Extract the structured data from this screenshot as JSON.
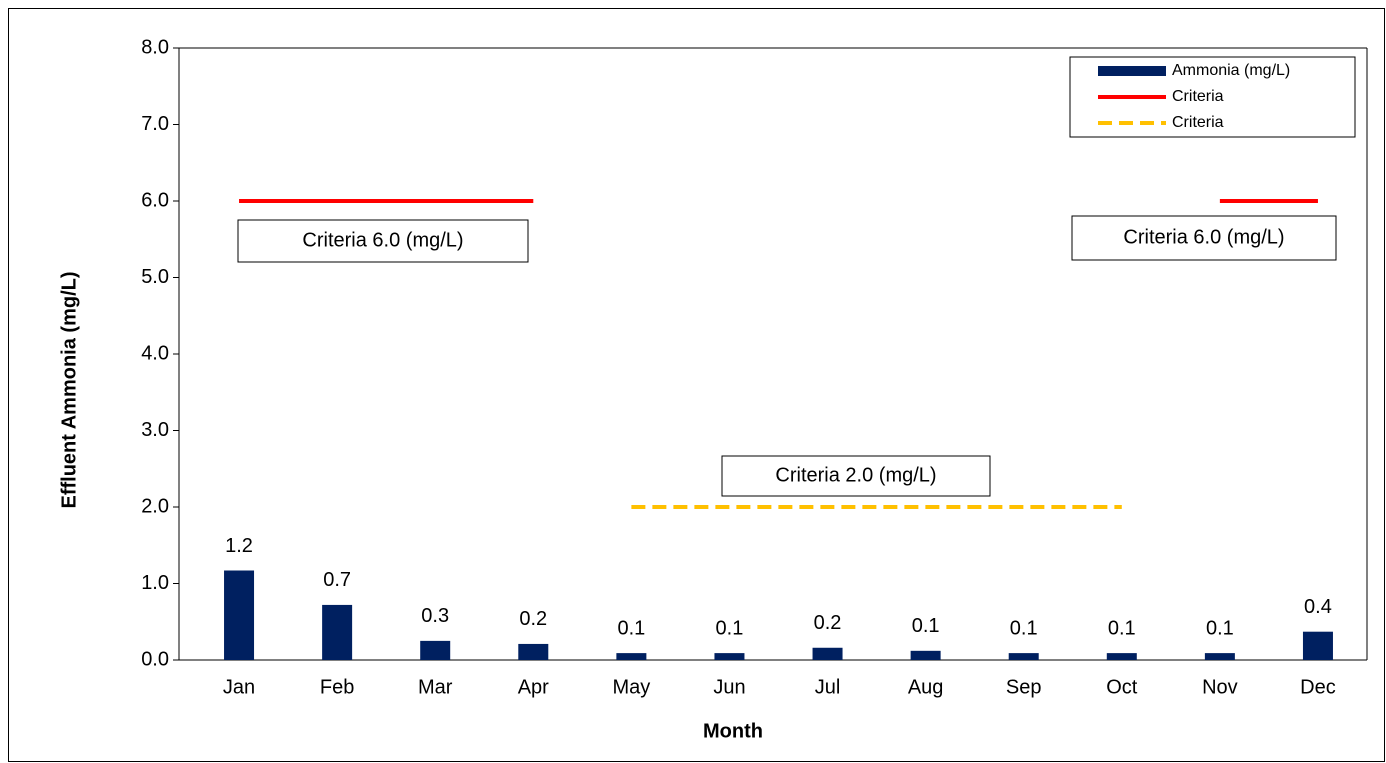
{
  "chart_data": {
    "type": "bar",
    "x_label": "Month",
    "y_label": "Effluent Ammonia (mg/L)",
    "categories": [
      "Jan",
      "Feb",
      "Mar",
      "Apr",
      "May",
      "Jun",
      "Jul",
      "Aug",
      "Sep",
      "Oct",
      "Nov",
      "Dec"
    ],
    "series": [
      {
        "name": "Ammonia (mg/L)",
        "type": "bar",
        "color": "#002060",
        "values": [
          1.17,
          0.72,
          0.25,
          0.21,
          0.09,
          0.09,
          0.16,
          0.12,
          0.09,
          0.09,
          0.09,
          0.37
        ],
        "value_labels": [
          "1.2",
          "0.7",
          "0.3",
          "0.2",
          "0.1",
          "0.1",
          "0.2",
          "0.1",
          "0.1",
          "0.1",
          "0.1",
          "0.4"
        ]
      },
      {
        "name": "Criteria",
        "type": "line",
        "color": "#ff0000",
        "dash": false,
        "values": [
          6,
          6,
          6,
          6,
          null,
          null,
          null,
          null,
          null,
          null,
          6,
          6
        ]
      },
      {
        "name": "Criteria",
        "type": "line",
        "color": "#ffc000",
        "dash": true,
        "values": [
          null,
          null,
          null,
          null,
          2,
          2,
          2,
          2,
          2,
          2,
          null,
          null
        ]
      }
    ],
    "annotations": [
      "Criteria 6.0 (mg/L)",
      "Criteria 6.0 (mg/L)",
      "Criteria 2.0 (mg/L)"
    ],
    "ylim": [
      0,
      8
    ],
    "yticks": [
      {
        "value": 0,
        "label": "0.0"
      },
      {
        "value": 1,
        "label": "1.0"
      },
      {
        "value": 2,
        "label": "2.0"
      },
      {
        "value": 3,
        "label": "3.0"
      },
      {
        "value": 4,
        "label": "4.0"
      },
      {
        "value": 5,
        "label": "5.0"
      },
      {
        "value": 6,
        "label": "6.0"
      },
      {
        "value": 7,
        "label": "7.0"
      },
      {
        "value": 8,
        "label": "8.0"
      }
    ],
    "grid": false,
    "legend": "top-right"
  }
}
